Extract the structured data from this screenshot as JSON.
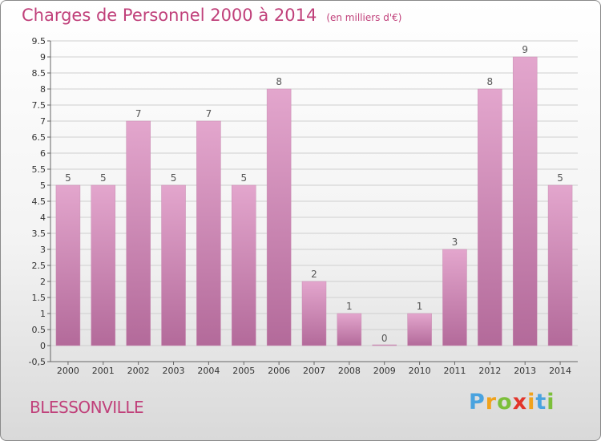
{
  "header": {
    "title": "Charges de Personnel 2000 à 2014",
    "subtitle": "(en milliers d'€)"
  },
  "footer": {
    "commune": "BLESSONVILLE",
    "logo": "Proxiti"
  },
  "colors": {
    "title": "#c0407a",
    "bar_top": "#e3a6cd",
    "bar_bottom": "#b36a9a"
  },
  "chart_data": {
    "type": "bar",
    "title": "Charges de Personnel 2000 à 2014",
    "subtitle": "(en milliers d'€)",
    "categories": [
      "2000",
      "2001",
      "2002",
      "2003",
      "2004",
      "2005",
      "2006",
      "2007",
      "2008",
      "2009",
      "2010",
      "2011",
      "2012",
      "2013",
      "2014"
    ],
    "values": [
      5,
      5,
      7,
      5,
      7,
      5,
      8,
      2,
      1,
      0,
      1,
      3,
      8,
      9,
      5
    ],
    "ylim": [
      -0.5,
      9.5
    ],
    "yticks": [
      "-0,5",
      "0",
      "0.5",
      "1",
      "1.5",
      "2",
      "2.5",
      "3",
      "3.5",
      "4",
      "4.5",
      "5",
      "5.5",
      "6",
      "6.5",
      "7",
      "7.5",
      "8",
      "8.5",
      "9",
      "9.5"
    ],
    "grid": true,
    "legend": "none"
  }
}
